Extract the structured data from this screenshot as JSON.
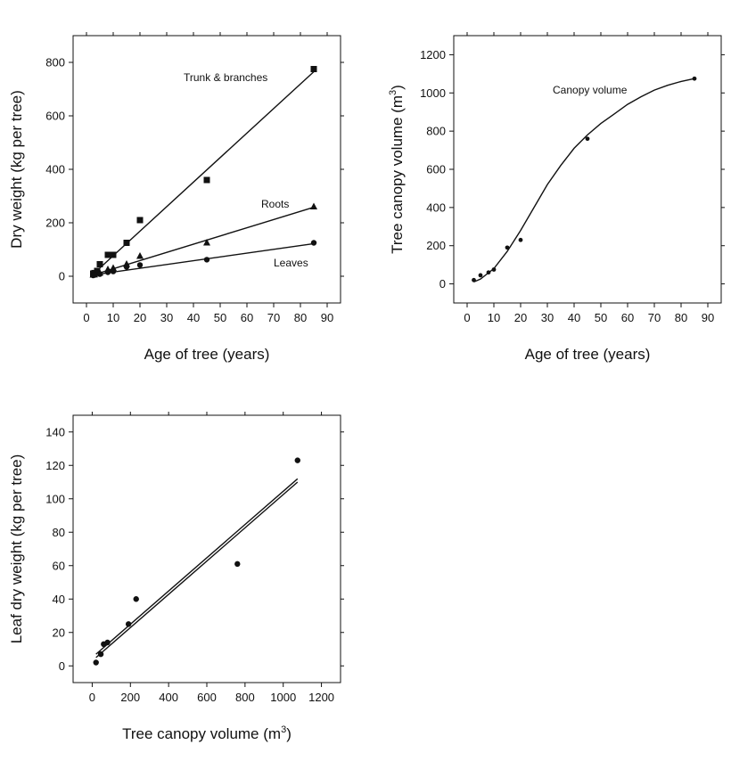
{
  "chart_data": [
    {
      "type": "scatter",
      "xlabel": "Age of tree (years)",
      "ylabel": "Dry weight (kg per tree)",
      "xlim": [
        -5,
        95
      ],
      "ylim": [
        -100,
        900
      ],
      "xticks": [
        0,
        10,
        20,
        30,
        40,
        50,
        60,
        70,
        80,
        90
      ],
      "xtick_labels": [
        "0",
        "10",
        "20",
        "30",
        "40",
        "50",
        "60",
        "70",
        "80",
        "90"
      ],
      "yticks": [
        0,
        200,
        400,
        600,
        800
      ],
      "ytick_labels": [
        "0",
        "200",
        "400",
        "600",
        "800"
      ],
      "grid": false,
      "series": [
        {
          "label": "Trunk & branches",
          "marker": "square",
          "points": [
            [
              2.5,
              10
            ],
            [
              3,
              12
            ],
            [
              4,
              20
            ],
            [
              5,
              45
            ],
            [
              8,
              80
            ],
            [
              10,
              80
            ],
            [
              15,
              125
            ],
            [
              20,
              210
            ],
            [
              45,
              360
            ],
            [
              85,
              775
            ]
          ],
          "fit": [
            [
              2.5,
              8
            ],
            [
              85,
              765
            ]
          ]
        },
        {
          "label": "Roots",
          "marker": "triangle",
          "points": [
            [
              2.5,
              5
            ],
            [
              3,
              6
            ],
            [
              5,
              12
            ],
            [
              8,
              25
            ],
            [
              10,
              30
            ],
            [
              15,
              45
            ],
            [
              20,
              75
            ],
            [
              45,
              125
            ],
            [
              85,
              260
            ]
          ],
          "fit": [
            [
              2.5,
              5
            ],
            [
              85,
              258
            ]
          ]
        },
        {
          "label": "Leaves",
          "marker": "circle",
          "points": [
            [
              2.5,
              3
            ],
            [
              3,
              5
            ],
            [
              5,
              8
            ],
            [
              8,
              15
            ],
            [
              10,
              18
            ],
            [
              15,
              35
            ],
            [
              20,
              42
            ],
            [
              45,
              62
            ],
            [
              85,
              125
            ]
          ],
          "fit": [
            [
              2.5,
              5
            ],
            [
              85,
              122
            ]
          ]
        }
      ]
    },
    {
      "type": "scatter",
      "xlabel": "Age of tree (years)",
      "ylabel": "Tree canopy volume (m",
      "ylabel_sup": "3",
      "ylabel_end": ")",
      "xlim": [
        -5,
        95
      ],
      "ylim": [
        -100,
        1300
      ],
      "xticks": [
        0,
        10,
        20,
        30,
        40,
        50,
        60,
        70,
        80,
        90
      ],
      "xtick_labels": [
        "0",
        "10",
        "20",
        "30",
        "40",
        "50",
        "60",
        "70",
        "80",
        "90"
      ],
      "yticks": [
        0,
        200,
        400,
        600,
        800,
        1000,
        1200
      ],
      "ytick_labels": [
        "0",
        "200",
        "400",
        "600",
        "800",
        "1000",
        "1200"
      ],
      "grid": false,
      "series": [
        {
          "label": "Canopy volume",
          "marker": "circle",
          "points": [
            [
              2.5,
              20
            ],
            [
              5,
              45
            ],
            [
              8,
              60
            ],
            [
              10,
              75
            ],
            [
              15,
              190
            ],
            [
              20,
              230
            ],
            [
              45,
              760
            ],
            [
              85,
              1075
            ]
          ],
          "fit": [
            [
              2.5,
              10
            ],
            [
              5,
              25
            ],
            [
              10,
              80
            ],
            [
              15,
              170
            ],
            [
              20,
              280
            ],
            [
              25,
              400
            ],
            [
              30,
              520
            ],
            [
              35,
              620
            ],
            [
              40,
              710
            ],
            [
              45,
              780
            ],
            [
              50,
              840
            ],
            [
              55,
              890
            ],
            [
              60,
              940
            ],
            [
              65,
              980
            ],
            [
              70,
              1015
            ],
            [
              75,
              1040
            ],
            [
              80,
              1060
            ],
            [
              85,
              1075
            ]
          ]
        }
      ]
    },
    {
      "type": "scatter",
      "xlabel": "Tree canopy volume (m",
      "xlabel_sup": "3",
      "xlabel_end": ")",
      "ylabel": "Leaf dry weight (kg per tree)",
      "xlim": [
        -100,
        1300
      ],
      "ylim": [
        -10,
        150
      ],
      "xticks": [
        0,
        200,
        400,
        600,
        800,
        1000,
        1200
      ],
      "xtick_labels": [
        "0",
        "200",
        "400",
        "600",
        "800",
        "1000",
        "1200"
      ],
      "yticks": [
        0,
        20,
        40,
        60,
        80,
        100,
        120,
        140
      ],
      "ytick_labels": [
        "0",
        "20",
        "40",
        "60",
        "80",
        "100",
        "120",
        "140"
      ],
      "grid": false,
      "series": [
        {
          "label": "",
          "marker": "circle",
          "points": [
            [
              20,
              2
            ],
            [
              45,
              7
            ],
            [
              60,
              13
            ],
            [
              80,
              14
            ],
            [
              190,
              25
            ],
            [
              230,
              40
            ],
            [
              760,
              61
            ],
            [
              1075,
              123
            ]
          ],
          "fit": [
            [
              20,
              5
            ],
            [
              1075,
              110
            ]
          ],
          "fit2": [
            [
              20,
              7
            ],
            [
              1075,
              112
            ]
          ]
        }
      ]
    }
  ]
}
